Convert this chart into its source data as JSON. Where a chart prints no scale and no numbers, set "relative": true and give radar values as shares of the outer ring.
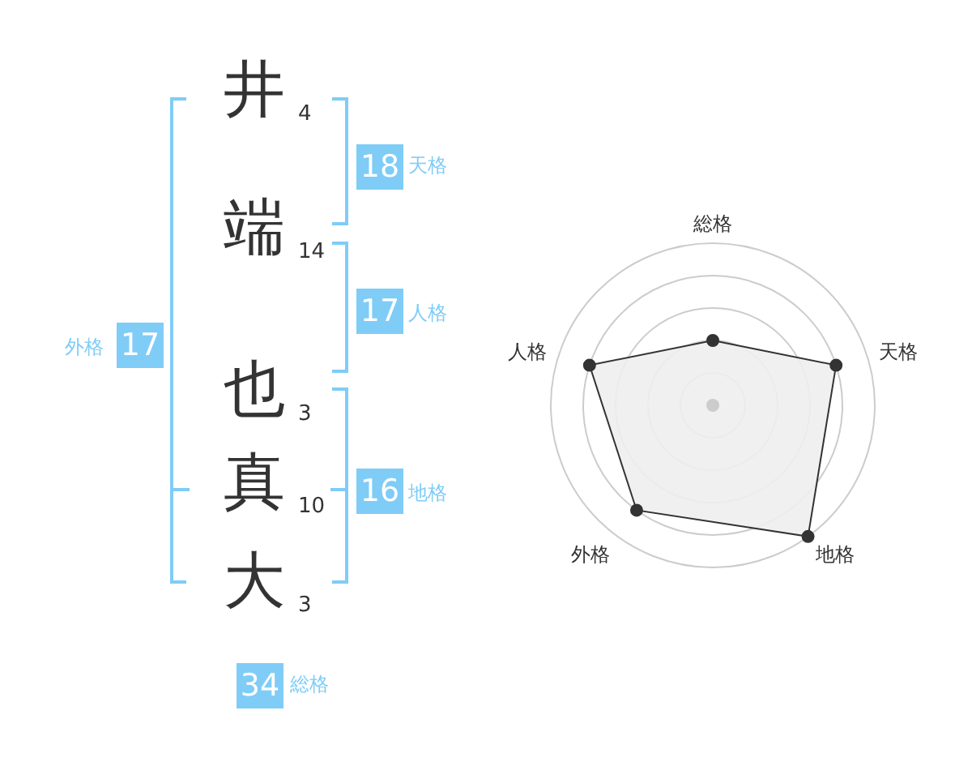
{
  "chart_data": [
    {
      "type": "other",
      "categories": [
        "井",
        "端",
        "也",
        "真",
        "大"
      ],
      "values": [
        4,
        14,
        3,
        10,
        3
      ],
      "data_labels": true,
      "color": "#7fccf7",
      "annotations": [
        "18",
        "天格",
        "17",
        "人格",
        "16",
        "地格",
        "17",
        "外格",
        "34",
        "総格"
      ]
    },
    {
      "type": "radar",
      "relative": true,
      "categories": [
        "総格",
        "天格",
        "地格",
        "外格",
        "人格"
      ],
      "grid": true,
      "marker": "circle",
      "series": [
        {
          "color": "#333333",
          "values": [
            0.4,
            0.8,
            1.0,
            0.8,
            0.8
          ]
        }
      ]
    }
  ]
}
